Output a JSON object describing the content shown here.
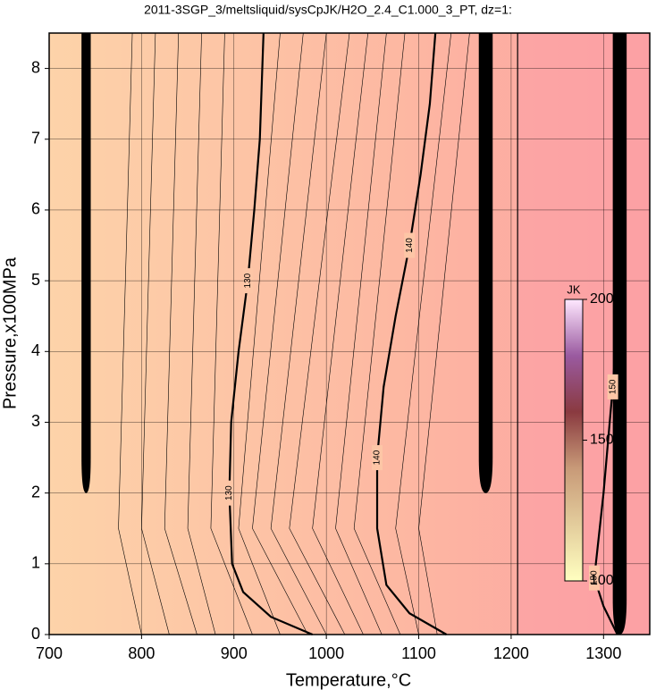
{
  "chart_data": {
    "type": "contour",
    "title": "2011-3SGP_3/meltsliquid/sysCpJK/H2O_2.4_C1.000_3_PT, dz=1:",
    "xlabel": "Temperature,°C",
    "ylabel": "Pressure,x100MPa",
    "xlim": [
      700,
      1350
    ],
    "ylim": [
      0,
      8.5
    ],
    "xticks": [
      700,
      800,
      900,
      1000,
      1100,
      1200,
      1300
    ],
    "yticks": [
      0,
      1,
      2,
      3,
      4,
      5,
      6,
      7,
      8
    ],
    "grid": true,
    "contours": [
      {
        "label": "130",
        "x": [
          985,
          940,
          910,
          898,
          895,
          897,
          905,
          915,
          922,
          928,
          932
        ],
        "y": [
          0,
          0.25,
          0.6,
          1,
          2,
          3,
          4,
          5,
          6,
          7,
          8.5
        ]
      },
      {
        "label": "140",
        "x": [
          1130,
          1090,
          1065,
          1055,
          1055,
          1062,
          1075,
          1090,
          1102,
          1112,
          1118
        ],
        "y": [
          0,
          0.3,
          0.7,
          1.5,
          2.5,
          3.5,
          4.5,
          5.5,
          6.5,
          7.5,
          8.5
        ]
      },
      {
        "label": "150",
        "x": [
          1315,
          1300,
          1290,
          1300,
          1310,
          1318,
          1320
        ],
        "y": [
          0,
          0.4,
          0.8,
          2,
          3.5,
          5,
          6
        ]
      }
    ],
    "thin_contours": [
      {
        "x": [
          800,
          775,
          790
        ],
        "y": [
          0,
          1.5,
          8.5
        ]
      },
      {
        "x": [
          830,
          800,
          815
        ],
        "y": [
          0,
          1.5,
          8.5
        ]
      },
      {
        "x": [
          860,
          825,
          840
        ],
        "y": [
          0,
          1.5,
          8.5
        ]
      },
      {
        "x": [
          880,
          850,
          865
        ],
        "y": [
          0,
          1.5,
          8.5
        ]
      },
      {
        "x": [
          920,
          875,
          890
        ],
        "y": [
          0,
          1.5,
          8.5
        ]
      },
      {
        "x": [
          950,
          905,
          950
        ],
        "y": [
          0,
          1.5,
          8.5
        ]
      },
      {
        "x": [
          980,
          920,
          975
        ],
        "y": [
          0,
          1.5,
          8.5
        ]
      },
      {
        "x": [
          1000,
          940,
          1000
        ],
        "y": [
          0,
          1.5,
          8.5
        ]
      },
      {
        "x": [
          1020,
          960,
          1025
        ],
        "y": [
          0,
          1.5,
          8.5
        ]
      },
      {
        "x": [
          1040,
          985,
          1045
        ],
        "y": [
          0,
          1.5,
          8.5
        ]
      },
      {
        "x": [
          1060,
          1010,
          1065
        ],
        "y": [
          0,
          1.5,
          8.5
        ]
      },
      {
        "x": [
          1080,
          1030,
          1085
        ],
        "y": [
          0,
          1.5,
          8.5
        ]
      },
      {
        "x": [
          1100,
          1075,
          1135
        ],
        "y": [
          0,
          1.5,
          8.5
        ]
      },
      {
        "x": [
          1120,
          1100,
          1155
        ],
        "y": [
          0,
          1.5,
          8.5
        ]
      }
    ],
    "dense_bands": [
      {
        "x": [
          735,
          745
        ],
        "y": [
          2,
          8.5
        ]
      },
      {
        "x": [
          1165,
          1180
        ],
        "y": [
          2,
          8.5
        ]
      },
      {
        "x": [
          1310,
          1325
        ],
        "y": [
          0,
          8.5
        ]
      }
    ],
    "boundary_x": 1207,
    "colorbar": {
      "label": "JK",
      "lim": [
        100,
        200
      ],
      "ticks": [
        100,
        150,
        200
      ]
    }
  }
}
